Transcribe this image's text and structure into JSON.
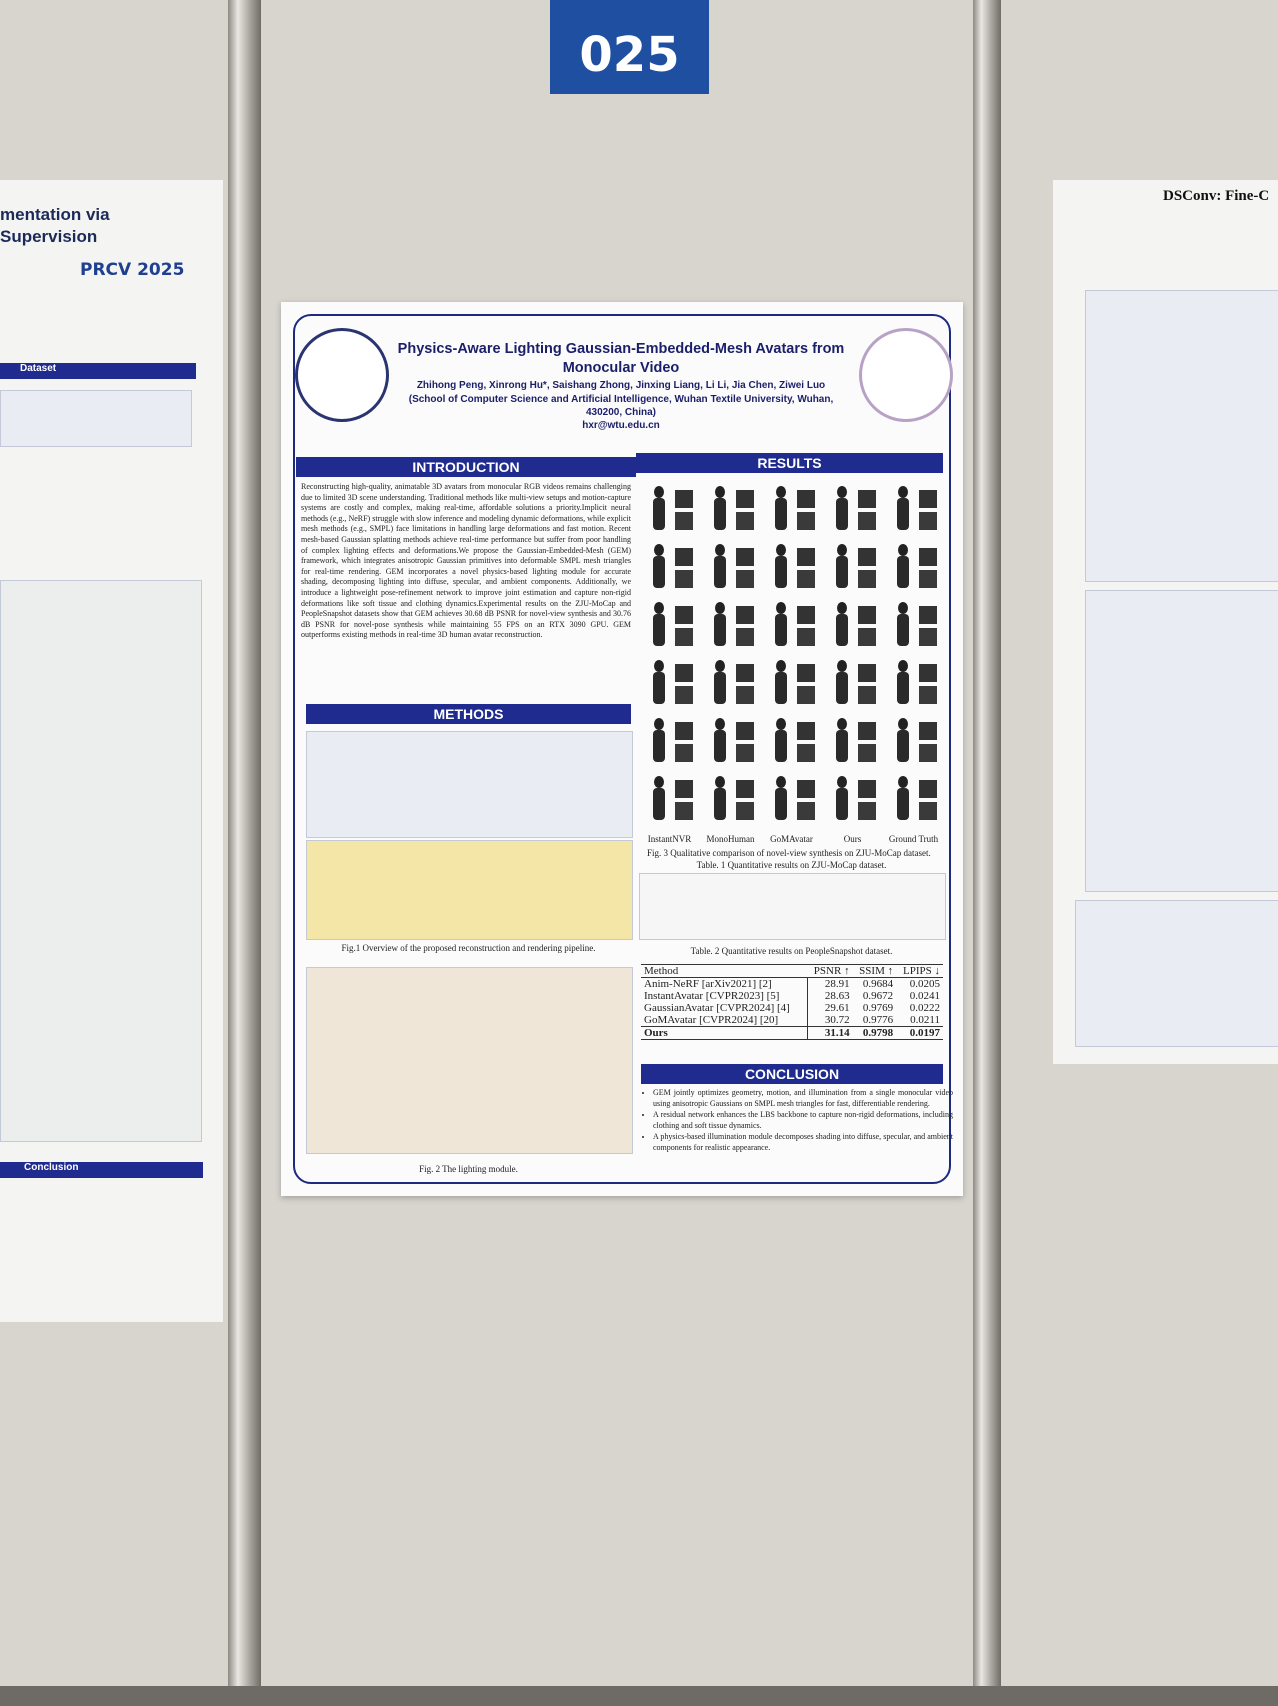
{
  "booth_number": "025",
  "left_poster": {
    "title": "mentation via Supervision",
    "logo_text": "PRCV 2025",
    "sections": [
      "Dataset",
      "Conclusion"
    ]
  },
  "right_poster": {
    "title": "DSConv: Fine-C"
  },
  "poster": {
    "title": "Physics-Aware Lighting Gaussian-Embedded-Mesh Avatars from Monocular Video",
    "authors": "Zhihong Peng, Xinrong Hu*, Saishang Zhong, Jinxing Liang, Li Li, Jia Chen, Ziwei Luo",
    "affiliation": "(School of Computer Science and Artificial Intelligence, Wuhan Textile University, Wuhan, 430200, China)",
    "email": "hxr@wtu.edu.cn",
    "introduction": {
      "heading": "INTRODUCTION",
      "text": "Reconstructing high-quality, animatable 3D avatars from monocular RGB videos remains challenging due to limited 3D scene understanding. Traditional methods like multi-view setups and motion-capture systems are costly and complex, making real-time, affordable solutions a priority.Implicit neural methods (e.g., NeRF) struggle with slow inference and modeling dynamic deformations, while explicit mesh methods (e.g., SMPL) face limitations in handling large deformations and fast motion. Recent mesh-based Gaussian splatting methods achieve real-time performance but suffer from poor handling of complex lighting effects and deformations.We propose the Gaussian-Embedded-Mesh (GEM) framework, which integrates anisotropic Gaussian primitives into deformable SMPL mesh triangles for real-time rendering. GEM incorporates a novel physics-based lighting module for accurate shading, decomposing lighting into diffuse, specular, and ambient components. Additionally, we introduce a lightweight pose-refinement network to improve joint estimation and capture non-rigid deformations like soft tissue and clothing dynamics.Experimental results on the ZJU-MoCap and PeopleSnapshot datasets show that GEM achieves 30.68 dB PSNR for novel-view synthesis and 30.76 dB PSNR for novel-pose synthesis while maintaining 55 FPS on an RTX 3090 GPU. GEM outperforms existing methods in real-time 3D human avatar reconstruction."
    },
    "methods": {
      "heading": "METHODS",
      "fig1_caption": "Fig.1 Overview of the proposed reconstruction and rendering pipeline.",
      "fig2_caption": "Fig. 2 The lighting module."
    },
    "results": {
      "heading": "RESULTS",
      "method_labels": [
        "InstantNVR",
        "MonoHuman",
        "GoMAvatar",
        "Ours",
        "Ground Truth"
      ],
      "fig3_caption": "Fig. 3 Qualitative comparison of novel-view synthesis on ZJU-MoCap dataset.",
      "table1_caption": "Table. 1 Quantitative results on ZJU-MoCap dataset.",
      "table2_caption": "Table. 2 Quantitative results on PeopleSnapshot dataset.",
      "table2": {
        "header": [
          "Method",
          "PSNR ↑",
          "SSIM ↑",
          "LPIPS ↓"
        ],
        "rows": [
          [
            "Anim-NeRF [arXiv2021] [2]",
            "28.91",
            "0.9684",
            "0.0205"
          ],
          [
            "InstantAvatar [CVPR2023] [5]",
            "28.63",
            "0.9672",
            "0.0241"
          ],
          [
            "GaussianAvatar [CVPR2024] [4]",
            "29.61",
            "0.9769",
            "0.0222"
          ],
          [
            "GoMAvatar [CVPR2024] [20]",
            "30.72",
            "0.9776",
            "0.0211"
          ],
          [
            "Ours",
            "31.14",
            "0.9798",
            "0.0197"
          ]
        ]
      }
    },
    "conclusion": {
      "heading": "CONCLUSION",
      "bullets": [
        "GEM jointly optimizes geometry, motion, and illumination from a single monocular video using anisotropic Gaussians on SMPL mesh triangles for fast, differentiable rendering.",
        "A residual network enhances the LBS backbone to capture non-rigid deformations, including clothing and soft tissue dynamics.",
        "A physics-based illumination module decomposes shading into diffuse, specular, and ambient components for realistic appearance."
      ]
    }
  }
}
